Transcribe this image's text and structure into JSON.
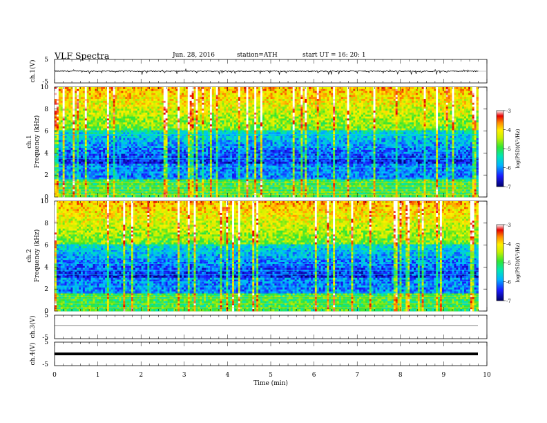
{
  "header": {
    "title": "VLF  Spectra",
    "date": "Jun. 28, 2016",
    "station": "station=ATH",
    "start": "start  UT =    16: 20: 1"
  },
  "chart_data": [
    {
      "type": "line",
      "panel": "ch1-waveform",
      "ylabel": "ch.1(V)",
      "yticks": [
        "5",
        "-5"
      ],
      "ylim": [
        -5,
        5
      ],
      "xlim": [
        0,
        10
      ],
      "x_end": 9.8,
      "baseline": 0,
      "note_series": "noisy waveform, baseline near 0 V with spikes reaching about -1.5 V"
    },
    {
      "type": "heatmap",
      "panel": "ch1-spectrogram",
      "ylabel_top": "ch.1",
      "ylabel": "Frequency  (kHz)",
      "yticks": [
        "0",
        "2",
        "4",
        "6",
        "8",
        "10"
      ],
      "ylim": [
        0,
        10
      ],
      "xlim": [
        0,
        10
      ],
      "x_end": 9.8,
      "colorbar": {
        "label": "log(PSD)(V²/Hz)",
        "ticks": [
          "-3",
          "-4",
          "-5",
          "-6",
          "-7"
        ],
        "range": [
          -7,
          -3
        ]
      },
      "bands_khz": [
        0.2,
        0.45,
        0.7,
        1.0,
        1.3,
        1.7,
        2.2,
        2.7,
        3.5,
        4.0,
        4.6,
        5.7
      ]
    },
    {
      "type": "heatmap",
      "panel": "ch2-spectrogram",
      "ylabel_top": "ch.2",
      "ylabel": "Frequency  (kHz)",
      "yticks": [
        "0",
        "2",
        "4",
        "6",
        "8",
        "10"
      ],
      "ylim": [
        0,
        10
      ],
      "xlim": [
        0,
        10
      ],
      "x_end": 9.8,
      "colorbar": {
        "label": "log(PSD)(V²/Hz)",
        "ticks": [
          "-3",
          "-4",
          "-5",
          "-6",
          "-7"
        ],
        "range": [
          -7,
          -3
        ]
      },
      "bands_khz": [
        0.3,
        0.7,
        1.1,
        1.3,
        1.7,
        2.2,
        2.7,
        3.3,
        3.7,
        4.3,
        4.8,
        5.4
      ]
    },
    {
      "type": "line",
      "panel": "ch3-waveform",
      "ylabel": "ch.3(V)",
      "yticks": [
        "5",
        "-5"
      ],
      "ylim": [
        -5,
        5
      ],
      "xlim": [
        0,
        10
      ],
      "x_end": 9.8,
      "baseline": 0
    },
    {
      "type": "line",
      "panel": "ch4-waveform",
      "ylabel": "ch.4(V)",
      "yticks": [
        "5",
        "-5"
      ],
      "ylim": [
        -5,
        5
      ],
      "xlim": [
        0,
        10
      ],
      "x_end": 9.8,
      "baseline": 0,
      "xlabel": "Time  (min)",
      "xticks": [
        "0",
        "1",
        "2",
        "3",
        "4",
        "5",
        "6",
        "7",
        "8",
        "9",
        "10"
      ]
    }
  ]
}
